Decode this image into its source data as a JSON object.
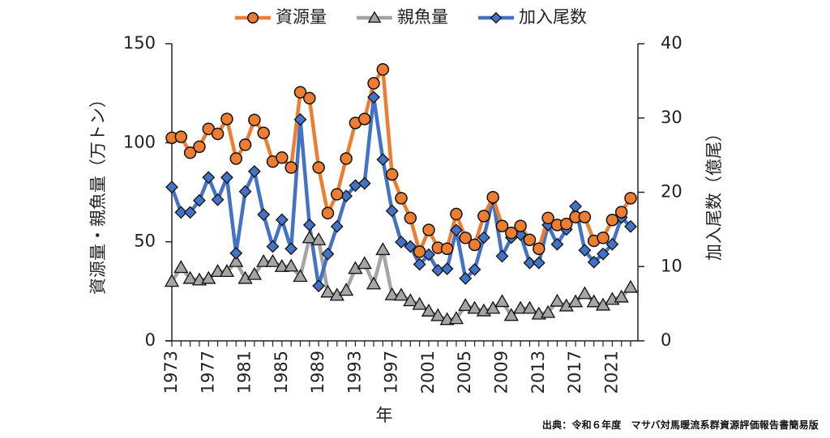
{
  "chart_data": {
    "type": "line",
    "title": "",
    "xlabel": "年",
    "ylabel": "資源量・親魚量（万トン）",
    "y2label": "加入尾数（億尾）",
    "x": [
      1973,
      1974,
      1975,
      1976,
      1977,
      1978,
      1979,
      1980,
      1981,
      1982,
      1983,
      1984,
      1985,
      1986,
      1987,
      1988,
      1989,
      1990,
      1991,
      1992,
      1993,
      1994,
      1995,
      1996,
      1997,
      1998,
      1999,
      2000,
      2001,
      2002,
      2003,
      2004,
      2005,
      2006,
      2007,
      2008,
      2009,
      2010,
      2011,
      2012,
      2013,
      2014,
      2015,
      2016,
      2017,
      2018,
      2019,
      2020,
      2021,
      2022,
      2023
    ],
    "x_tick_labels": [
      "1973",
      "1977",
      "1981",
      "1985",
      "1989",
      "1993",
      "1997",
      "2001",
      "2005",
      "2009",
      "2013",
      "2017",
      "2021"
    ],
    "ylim": [
      0,
      150
    ],
    "y_ticks": [
      0,
      50,
      100,
      150
    ],
    "y2lim": [
      0,
      40
    ],
    "y2_ticks": [
      0,
      10,
      20,
      30,
      40
    ],
    "grid": false,
    "legend_position": "top",
    "series": [
      {
        "name": "資源量",
        "axis": "left",
        "marker": "circle",
        "color": "#ED7D31",
        "values": [
          102.5,
          103,
          95,
          98,
          107,
          104.5,
          112,
          92,
          99,
          111.5,
          105,
          90.5,
          92.5,
          87.5,
          125.5,
          122.5,
          87.5,
          64.5,
          74,
          92,
          110,
          112,
          130,
          137,
          84,
          72,
          62,
          45,
          56,
          47,
          46.5,
          64,
          52,
          48.5,
          63,
          72.5,
          58,
          54.5,
          58,
          51,
          46.5,
          62,
          58.5,
          59,
          62.5,
          62.5,
          50.5,
          52,
          61,
          65,
          72
        ]
      },
      {
        "name": "親魚量",
        "axis": "left",
        "marker": "triangle",
        "color": "#A5A5A5",
        "values": [
          30,
          37,
          31.5,
          30.7,
          31.5,
          35,
          35,
          40,
          31.5,
          33.5,
          40,
          40,
          37.5,
          37.7,
          32.5,
          52,
          51,
          24.6,
          23,
          25.5,
          36.5,
          39,
          28.7,
          46,
          23.2,
          23,
          20.2,
          18.4,
          15,
          12.7,
          10.7,
          11.2,
          17.8,
          16.4,
          15.1,
          16.4,
          19.8,
          12.8,
          16.4,
          16.4,
          13.5,
          14.3,
          20,
          17.6,
          19.7,
          23.8,
          19.7,
          18,
          20.9,
          22.1,
          27
        ]
      },
      {
        "name": "加入尾数",
        "axis": "right",
        "marker": "diamond",
        "color": "#4472C4",
        "values": [
          20.7,
          17.3,
          17.3,
          18.9,
          22,
          19,
          22,
          11.8,
          20.1,
          22.8,
          17,
          12.7,
          16.3,
          12.4,
          29.8,
          15.6,
          7.4,
          11.7,
          15.4,
          19.5,
          20.9,
          21.2,
          32.8,
          24.4,
          17.5,
          13.3,
          12.7,
          10.3,
          11.6,
          9.5,
          9.7,
          14.9,
          8.4,
          9.6,
          13.9,
          19.1,
          11.4,
          13.9,
          14.3,
          10.5,
          10.5,
          15.6,
          13,
          15,
          18.1,
          12.2,
          10.6,
          11.7,
          13,
          16.6,
          15.4
        ]
      }
    ]
  },
  "source_note": "出典：令和６年度　マサバ対馬暖流系群資源評価報告書簡易版"
}
